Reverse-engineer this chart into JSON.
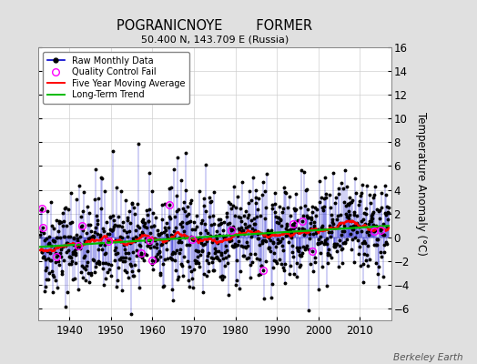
{
  "title": "POGRANICNOYE        FORMER",
  "subtitle": "50.400 N, 143.709 E (Russia)",
  "ylabel": "Temperature Anomaly (°C)",
  "xlabel_bottom": "Berkeley Earth",
  "year_start": 1933,
  "year_end": 2016,
  "ylim": [
    -7,
    16
  ],
  "yticks": [
    -6,
    -4,
    -2,
    0,
    2,
    4,
    6,
    8,
    10,
    12,
    14,
    16
  ],
  "xticks": [
    1940,
    1950,
    1960,
    1970,
    1980,
    1990,
    2000,
    2010
  ],
  "bg_color": "#e0e0e0",
  "plot_bg_color": "#ffffff",
  "raw_line_color": "#0000cc",
  "raw_dot_color": "#000000",
  "qc_fail_color": "#ff00ff",
  "moving_avg_color": "#ff0000",
  "trend_color": "#00bb00",
  "seed": 42,
  "noise_std": 2.0,
  "trend_slope": 0.018
}
